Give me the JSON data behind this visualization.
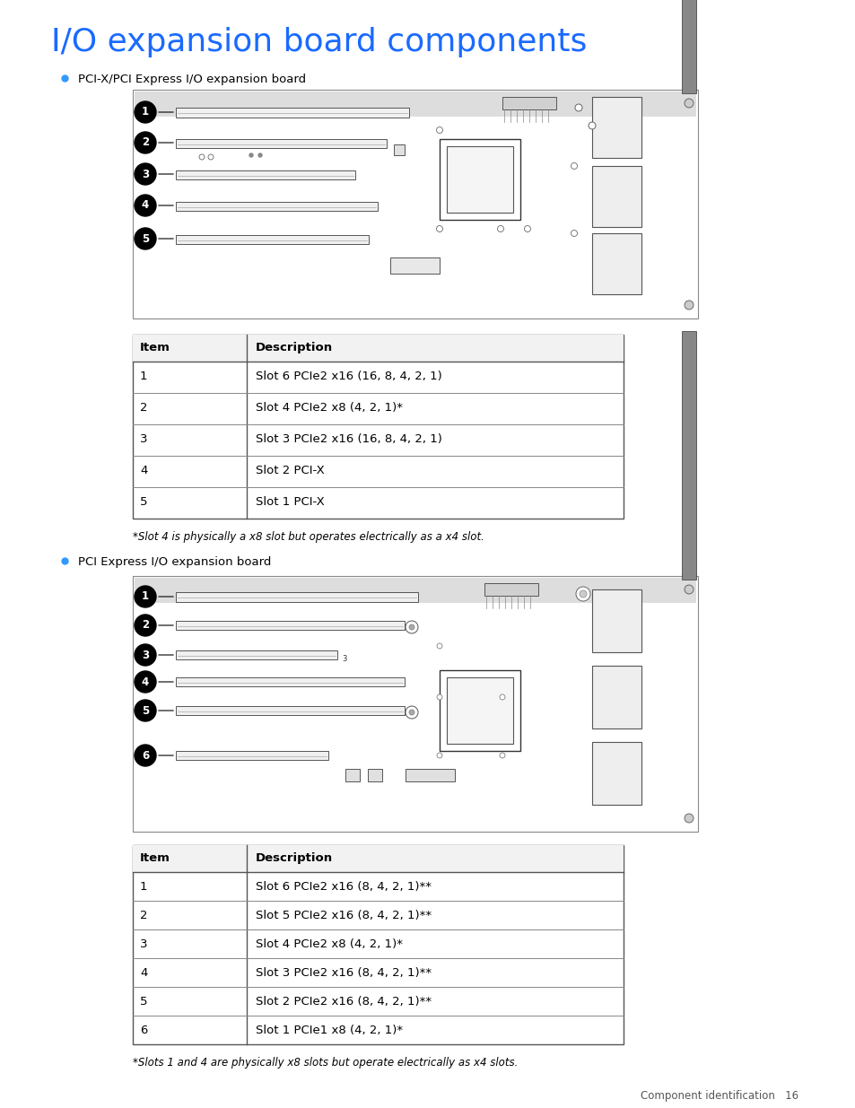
{
  "title": "I/O expansion board components",
  "title_color": "#1a6aff",
  "title_fontsize": 26,
  "background_color": "#ffffff",
  "bullet_color": "#3399ff",
  "section1_bullet": "PCI-X/PCI Express I/O expansion board",
  "section2_bullet": "PCI Express I/O expansion board",
  "table1_headers": [
    "Item",
    "Description"
  ],
  "table1_rows": [
    [
      "1",
      "Slot 6 PCIe2 x16 (16, 8, 4, 2, 1)"
    ],
    [
      "2",
      "Slot 4 PCIe2 x8 (4, 2, 1)*"
    ],
    [
      "3",
      "Slot 3 PCIe2 x16 (16, 8, 4, 2, 1)"
    ],
    [
      "4",
      "Slot 2 PCI-X"
    ],
    [
      "5",
      "Slot 1 PCI-X"
    ]
  ],
  "table1_footnote": "*Slot 4 is physically a x8 slot but operates electrically as a x4 slot.",
  "table2_headers": [
    "Item",
    "Description"
  ],
  "table2_rows": [
    [
      "1",
      "Slot 6 PCIe2 x16 (8, 4, 2, 1)**"
    ],
    [
      "2",
      "Slot 5 PCIe2 x16 (8, 4, 2, 1)**"
    ],
    [
      "3",
      "Slot 4 PCIe2 x8 (4, 2, 1)*"
    ],
    [
      "4",
      "Slot 3 PCIe2 x16 (8, 4, 2, 1)**"
    ],
    [
      "5",
      "Slot 2 PCIe2 x16 (8, 4, 2, 1)**"
    ],
    [
      "6",
      "Slot 1 PCIe1 x8 (4, 2, 1)*"
    ]
  ],
  "table2_footnote": "*Slots 1 and 4 are physically x8 slots but operate electrically as x4 slots.",
  "footer_text": "Component identification   16"
}
